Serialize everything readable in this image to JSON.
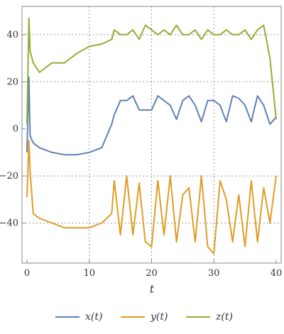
{
  "chart_data": {
    "type": "line",
    "title": "",
    "xlabel": "t",
    "ylabel": "",
    "xlim": [
      -0.8,
      40.8
    ],
    "ylim": [
      -57,
      52
    ],
    "x_ticks": [
      0,
      10,
      20,
      30,
      40
    ],
    "y_ticks": [
      -40,
      -20,
      0,
      20,
      40
    ],
    "x_tick_labels": [
      "0",
      "10",
      "20",
      "30",
      "40"
    ],
    "y_tick_labels": [
      "−40",
      "−20",
      "0",
      "20",
      "40"
    ],
    "grid": true,
    "grid_at_x": [
      10,
      20,
      30
    ],
    "grid_at_y": [
      -40,
      -20,
      20,
      40
    ],
    "legend_position": "bottom",
    "x_sampled": [
      0.0,
      0.3,
      0.5,
      1.0,
      2.0,
      4.0,
      6.0,
      8.0,
      10.0,
      12.0,
      13.6,
      14.0,
      15.0,
      16.0,
      17.0,
      18.0,
      19.0,
      20.0,
      21.0,
      22.0,
      23.0,
      24.0,
      25.0,
      26.0,
      27.0,
      28.0,
      29.0,
      30.0,
      31.0,
      32.0,
      33.0,
      34.0,
      35.0,
      36.0,
      37.0,
      38.0,
      39.0,
      40.0
    ],
    "series": [
      {
        "name": "x(t)",
        "color": "#5e81b5",
        "values": [
          -10,
          22,
          -3,
          -6,
          -8,
          -10,
          -11,
          -11,
          -10,
          -8,
          2,
          6,
          12,
          12,
          14,
          8,
          8,
          8,
          14,
          12,
          10,
          4,
          12,
          14,
          10,
          3,
          12,
          12,
          10,
          3,
          14,
          13,
          10,
          3,
          14,
          10,
          2,
          5
        ]
      },
      {
        "name": "y(t)",
        "color": "#e19c24",
        "values": [
          -29,
          -5,
          -18,
          -36,
          -38,
          -40,
          -42,
          -42,
          -42,
          -40,
          -36,
          -22,
          -45,
          -20,
          -45,
          -23,
          -48,
          -50,
          -22,
          -45,
          -20,
          -48,
          -28,
          -25,
          -48,
          -20,
          -50,
          -53,
          -22,
          -30,
          -48,
          -28,
          -50,
          -22,
          -48,
          -25,
          -40,
          -20
        ]
      },
      {
        "name": "z(t)",
        "color": "#8fb032",
        "values": [
          2,
          47,
          33,
          28,
          24,
          28,
          28,
          32,
          35,
          36,
          38,
          42,
          40,
          40,
          42,
          38,
          44,
          42,
          40,
          42,
          40,
          44,
          40,
          40,
          42,
          38,
          42,
          40,
          40,
          42,
          40,
          40,
          42,
          38,
          42,
          44,
          30,
          4
        ]
      }
    ]
  },
  "legend": {
    "items": [
      {
        "label": "x(t)",
        "color": "#5e81b5"
      },
      {
        "label": "y(t)",
        "color": "#e19c24"
      },
      {
        "label": "z(t)",
        "color": "#8fb032"
      }
    ]
  }
}
